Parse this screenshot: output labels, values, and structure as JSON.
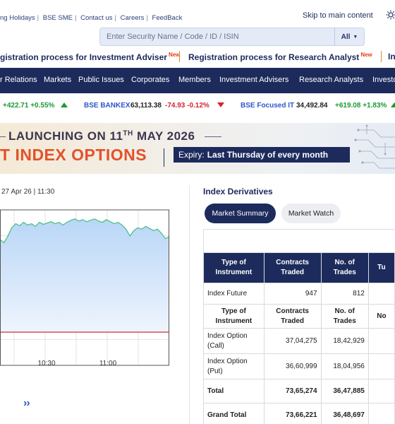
{
  "top_links": [
    "ng Holidays",
    "BSE SME",
    "Contact us",
    "Careers",
    "FeedBack"
  ],
  "skip_link": "Skip to main content",
  "search": {
    "placeholder": "Enter Security Name / Code / ID / ISIN",
    "scope": "All"
  },
  "announcements": [
    {
      "text": "gistration process for Investment Adviser",
      "badge": "New"
    },
    {
      "text": "Registration process for Research Analyst",
      "badge": "New"
    },
    {
      "text": "In",
      "badge": ""
    }
  ],
  "nav": [
    "r Relations",
    "Markets",
    "Public Issues",
    "Corporates",
    "Members",
    "Investment Advisers",
    "Research Analysts",
    "Investo"
  ],
  "ticker": [
    {
      "name": "",
      "value": "",
      "change": "+422.71 +0.55%",
      "direction": "up"
    },
    {
      "name": "BSE BANKEX",
      "value": "63,113.38",
      "change": "-74.93 -0.12%",
      "direction": "down"
    },
    {
      "name": "BSE Focused IT",
      "value": "34,492.84",
      "change": "+619.08 +1.83%",
      "direction": "up"
    }
  ],
  "banner": {
    "headline": "LAUNCHING ON 11",
    "headline_sup": "TH",
    "headline_tail": " MAY 2026",
    "product": "T INDEX OPTIONS",
    "expiry_label": "Expiry:",
    "expiry_value": "Last Thursday of every month"
  },
  "chart": {
    "timestamp": "27 Apr 26 | 11:30",
    "pager": "››"
  },
  "chart_data": {
    "type": "area",
    "x_ticks": [
      "10:30",
      "11:00"
    ],
    "reference_line": "previous close",
    "colors": {
      "line": "#4cc088",
      "fill": "#b9d6f7",
      "reference": "#d32f2f"
    },
    "grid": true,
    "series_shape": [
      0.35,
      0.4,
      0.3,
      0.18,
      0.12,
      0.15,
      0.1,
      0.14,
      0.12,
      0.16,
      0.1,
      0.13,
      0.11,
      0.09,
      0.12,
      0.1,
      0.14,
      0.1,
      0.07,
      0.05,
      0.08,
      0.06,
      0.09,
      0.07,
      0.05,
      0.08,
      0.1,
      0.06,
      0.09,
      0.12,
      0.1,
      0.14,
      0.2,
      0.3,
      0.22,
      0.18,
      0.2,
      0.16,
      0.19,
      0.22,
      0.2,
      0.26,
      0.34,
      0.31
    ]
  },
  "derivatives": {
    "title": "Index Derivatives",
    "tabs": [
      "Market Summary",
      "Market Watch"
    ],
    "header": [
      "Type of Instrument",
      "Contracts Traded",
      "No. of Trades",
      "Tu"
    ],
    "rows": [
      {
        "type": "Index Future",
        "contracts": "947",
        "trades": "812",
        "extra": ""
      }
    ],
    "subheader": [
      "Type of Instrument",
      "Contracts Traded",
      "No. of Trades",
      "No"
    ],
    "option_rows": [
      {
        "type": "Index Option (Call)",
        "contracts": "37,04,275",
        "trades": "18,42,929",
        "extra": ""
      },
      {
        "type": "Index Option (Put)",
        "contracts": "36,60,999",
        "trades": "18,04,956",
        "extra": ""
      },
      {
        "type": "Total",
        "contracts": "73,65,274",
        "trades": "36,47,885",
        "extra": ""
      },
      {
        "type": "Grand Total",
        "contracts": "73,66,221",
        "trades": "36,48,697",
        "extra": ""
      }
    ]
  }
}
